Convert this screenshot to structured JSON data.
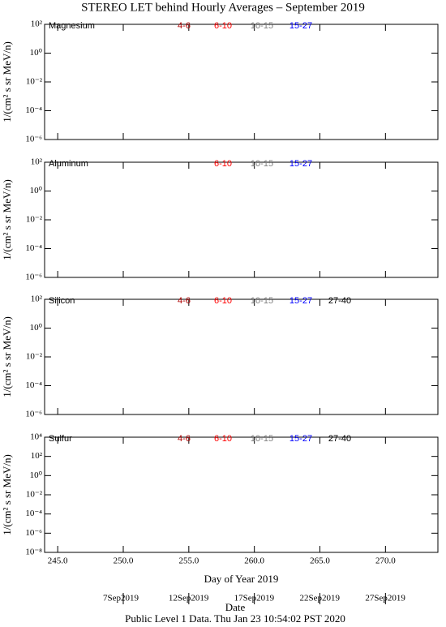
{
  "title": "STEREO LET behind Hourly Averages – September 2019",
  "footer": "Public Level 1 Data. Thu Jan 23 10:54:02 PST 2020",
  "date_axis": {
    "label": "Date",
    "ticks": [
      {
        "value": 250,
        "label": "7Sep2019"
      },
      {
        "value": 255,
        "label": "12Sep2019"
      },
      {
        "value": 260,
        "label": "17Sep2019"
      },
      {
        "value": 265,
        "label": "22Sep2019"
      },
      {
        "value": 270,
        "label": "27Sep2019"
      }
    ]
  },
  "chart_data": [
    {
      "type": "line",
      "name": "Magnesium",
      "ylabel": "1/(cm² s sr MeV/n)",
      "log_y": true,
      "ylim": [
        1e-06,
        100
      ],
      "yticks": [
        {
          "value": 100,
          "label": "10²"
        },
        {
          "value": 1,
          "label": "10⁰"
        },
        {
          "value": 0.01,
          "label": "10⁻²"
        },
        {
          "value": 0.0001,
          "label": "10⁻⁴"
        },
        {
          "value": 1e-06,
          "label": "10⁻⁶"
        }
      ],
      "series": [
        {
          "name": "4-6",
          "color": "#b00000"
        },
        {
          "name": "6-10",
          "color": "#ff0000"
        },
        {
          "name": "10-15",
          "color": "#808080"
        },
        {
          "name": "15-27",
          "color": "#0000ff"
        }
      ]
    },
    {
      "type": "line",
      "name": "Aluminum",
      "ylabel": "1/(cm² s sr MeV/n)",
      "log_y": true,
      "ylim": [
        1e-06,
        100
      ],
      "yticks": [
        {
          "value": 100,
          "label": "10²"
        },
        {
          "value": 1,
          "label": "10⁰"
        },
        {
          "value": 0.01,
          "label": "10⁻²"
        },
        {
          "value": 0.0001,
          "label": "10⁻⁴"
        },
        {
          "value": 1e-06,
          "label": "10⁻⁶"
        }
      ],
      "series": [
        {
          "name": "6-10",
          "color": "#ff0000"
        },
        {
          "name": "10-15",
          "color": "#808080"
        },
        {
          "name": "15-27",
          "color": "#0000ff"
        }
      ]
    },
    {
      "type": "line",
      "name": "Silicon",
      "ylabel": "1/(cm² s sr MeV/n)",
      "log_y": true,
      "ylim": [
        1e-06,
        100
      ],
      "yticks": [
        {
          "value": 100,
          "label": "10²"
        },
        {
          "value": 1,
          "label": "10⁰"
        },
        {
          "value": 0.01,
          "label": "10⁻²"
        },
        {
          "value": 0.0001,
          "label": "10⁻⁴"
        },
        {
          "value": 1e-06,
          "label": "10⁻⁶"
        }
      ],
      "series": [
        {
          "name": "4-6",
          "color": "#b00000"
        },
        {
          "name": "6-10",
          "color": "#ff0000"
        },
        {
          "name": "10-15",
          "color": "#808080"
        },
        {
          "name": "15-27",
          "color": "#0000ff"
        },
        {
          "name": "27-40",
          "color": "#000000"
        }
      ]
    },
    {
      "type": "line",
      "name": "Sulfur",
      "ylabel": "1/(cm² s sr MeV/n)",
      "log_y": true,
      "xlabel": "Day of Year 2019",
      "xlim": [
        244,
        274
      ],
      "xticks": [
        {
          "value": 245,
          "label": "245.0"
        },
        {
          "value": 250,
          "label": "250.0"
        },
        {
          "value": 255,
          "label": "255.0"
        },
        {
          "value": 260,
          "label": "260.0"
        },
        {
          "value": 265,
          "label": "265.0"
        },
        {
          "value": 270,
          "label": "270.0"
        }
      ],
      "ylim": [
        1e-08,
        10000
      ],
      "yticks": [
        {
          "value": 10000,
          "label": "10⁴"
        },
        {
          "value": 100,
          "label": "10²"
        },
        {
          "value": 1,
          "label": "10⁰"
        },
        {
          "value": 0.01,
          "label": "10⁻²"
        },
        {
          "value": 0.0001,
          "label": "10⁻⁴"
        },
        {
          "value": 1e-06,
          "label": "10⁻⁶"
        },
        {
          "value": 1e-08,
          "label": "10⁻⁸"
        }
      ],
      "series": [
        {
          "name": "4-6",
          "color": "#b00000"
        },
        {
          "name": "6-10",
          "color": "#ff0000"
        },
        {
          "name": "10-15",
          "color": "#808080"
        },
        {
          "name": "15-27",
          "color": "#0000ff"
        },
        {
          "name": "27-40",
          "color": "#000000"
        }
      ]
    }
  ]
}
